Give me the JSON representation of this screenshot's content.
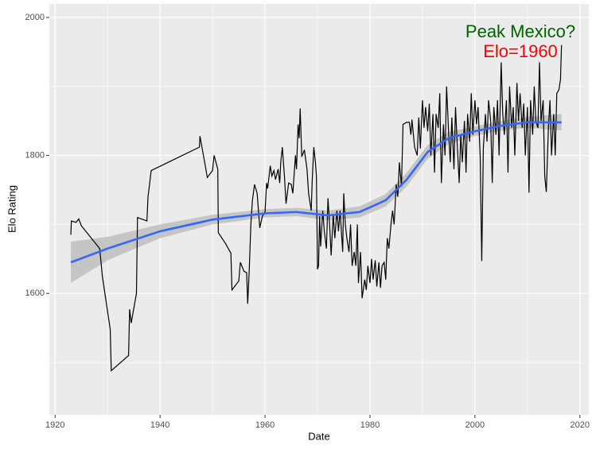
{
  "chart_data": {
    "type": "line",
    "x_label": "Date",
    "y_label": "Elo Rating",
    "annotations": [
      {
        "text": "Peak Mexico?",
        "color": "#006400"
      },
      {
        "text": "Elo=1960",
        "color": "#ff0000"
      }
    ],
    "xlim": [
      1918.9,
      2021.7
    ],
    "ylim": [
      1424,
      2019.5
    ],
    "xticks": [
      1920,
      1940,
      1960,
      1980,
      2000,
      2020
    ],
    "yticks": [
      1600,
      1800,
      2000
    ],
    "grid": true,
    "line": {
      "color": "#000000",
      "x": [
        1923,
        1923.1,
        1924,
        1924.5,
        1925,
        1928.5,
        1929,
        1930.5,
        1930.7,
        1934,
        1934.2,
        1934.5,
        1935.5,
        1935.7,
        1937.5,
        1937.7,
        1938,
        1938.3,
        1947.5,
        1947.6,
        1948.5,
        1949,
        1950,
        1950.3,
        1951,
        1951.1,
        1952.5,
        1953.5,
        1953.7,
        1955,
        1955.3,
        1956,
        1956.5,
        1956.7,
        1957,
        1957.3,
        1957.6,
        1958,
        1958.5,
        1959,
        1959.5,
        1960,
        1960.3,
        1960.5,
        1961,
        1961.3,
        1961.7,
        1962,
        1962.5,
        1962.8,
        1963,
        1963.3,
        1963.7,
        1964,
        1964.5,
        1965,
        1965.3,
        1965.8,
        1966,
        1966.3,
        1966.5,
        1966.7,
        1967,
        1967.5,
        1968,
        1968.3,
        1968.8,
        1969,
        1969.3,
        1969.6,
        1969.8,
        1970,
        1970.2,
        1970.4,
        1970.6,
        1971,
        1971.3,
        1971.7,
        1972,
        1972.3,
        1972.6,
        1973,
        1973.3,
        1973.7,
        1974,
        1974.3,
        1974.8,
        1975,
        1975.3,
        1975.6,
        1976,
        1976.3,
        1976.6,
        1977,
        1977.3,
        1977.6,
        1977.8,
        1978.2,
        1978.5,
        1979,
        1979.3,
        1979.6,
        1980,
        1980.3,
        1980.6,
        1981,
        1981.3,
        1981.7,
        1982,
        1982.3,
        1982.7,
        1983,
        1983.3,
        1983.6,
        1984,
        1984.3,
        1984.6,
        1985,
        1985.3,
        1985.6,
        1986,
        1986.3,
        1987,
        1987.5,
        1987.8,
        1988,
        1988.5,
        1989,
        1989.3,
        1989.6,
        1990,
        1990.3,
        1990.6,
        1991,
        1991.3,
        1991.6,
        1992,
        1992.3,
        1992.6,
        1993,
        1993.3,
        1993.6,
        1994,
        1994.3,
        1994.6,
        1995,
        1995.3,
        1995.6,
        1996,
        1996.3,
        1996.6,
        1997,
        1997.3,
        1997.6,
        1998,
        1998.3,
        1998.6,
        1999,
        1999.3,
        1999.6,
        2000,
        2000.3,
        2000.6,
        2001,
        2001.3,
        2001.6,
        2002,
        2002.3,
        2002.6,
        2003,
        2003.3,
        2003.6,
        2004,
        2004.3,
        2004.6,
        2005,
        2005.3,
        2005.6,
        2006,
        2006.3,
        2006.6,
        2007,
        2007.3,
        2007.6,
        2008,
        2008.3,
        2008.6,
        2009,
        2009.3,
        2009.6,
        2010,
        2010.3,
        2010.6,
        2011,
        2011.3,
        2011.6,
        2012,
        2012.3,
        2012.6,
        2013,
        2013.3,
        2013.6,
        2014,
        2014.3,
        2014.6,
        2015,
        2015.3,
        2015.6,
        2016,
        2016.3,
        2016.5
      ],
      "values": [
        1685,
        1705,
        1703,
        1708,
        1698,
        1665,
        1625,
        1548,
        1488,
        1510,
        1577,
        1557,
        1600,
        1710,
        1705,
        1740,
        1758,
        1778,
        1812,
        1828,
        1790,
        1768,
        1778,
        1800,
        1780,
        1688,
        1672,
        1658,
        1605,
        1618,
        1645,
        1632,
        1630,
        1585,
        1635,
        1700,
        1735,
        1758,
        1745,
        1695,
        1712,
        1718,
        1760,
        1752,
        1785,
        1770,
        1778,
        1765,
        1780,
        1760,
        1790,
        1812,
        1770,
        1730,
        1760,
        1758,
        1745,
        1800,
        1780,
        1845,
        1825,
        1868,
        1798,
        1808,
        1780,
        1745,
        1720,
        1765,
        1812,
        1790,
        1770,
        1635,
        1640,
        1712,
        1668,
        1720,
        1690,
        1665,
        1738,
        1700,
        1655,
        1715,
        1680,
        1720,
        1690,
        1720,
        1660,
        1745,
        1700,
        1680,
        1660,
        1700,
        1640,
        1660,
        1640,
        1700,
        1615,
        1660,
        1593,
        1620,
        1605,
        1640,
        1615,
        1650,
        1620,
        1648,
        1610,
        1645,
        1608,
        1640,
        1645,
        1620,
        1680,
        1665,
        1700,
        1720,
        1700,
        1758,
        1740,
        1790,
        1755,
        1845,
        1848,
        1848,
        1830,
        1852,
        1812,
        1800,
        1855,
        1810,
        1880,
        1840,
        1870,
        1835,
        1875,
        1800,
        1860,
        1775,
        1860,
        1840,
        1890,
        1760,
        1845,
        1800,
        1900,
        1830,
        1790,
        1855,
        1780,
        1870,
        1820,
        1760,
        1830,
        1790,
        1850,
        1775,
        1860,
        1820,
        1890,
        1830,
        1880,
        1845,
        1870,
        1800,
        1647,
        1810,
        1860,
        1820,
        1880,
        1850,
        1760,
        1870,
        1830,
        1880,
        1800,
        1935,
        1860,
        1830,
        1880,
        1775,
        1900,
        1840,
        1870,
        1800,
        1905,
        1850,
        1890,
        1840,
        1875,
        1800,
        1870,
        1746,
        1880,
        1830,
        1900,
        1850,
        1840,
        1935,
        1850,
        1880,
        1770,
        1747,
        1840,
        1880,
        1800,
        1860,
        1800,
        1890,
        1895,
        1910,
        1960
      ]
    },
    "smooth": {
      "color": "#3366FF",
      "band_color": "#BEBEBE",
      "x": [
        1923,
        1930,
        1940,
        1950,
        1960,
        1966,
        1972,
        1978,
        1983,
        1987,
        1991,
        1995,
        2000,
        2005,
        2010,
        2016.5
      ],
      "values": [
        1645,
        1665,
        1690,
        1707,
        1716,
        1718,
        1713,
        1718,
        1735,
        1765,
        1805,
        1825,
        1835,
        1843,
        1848,
        1848
      ],
      "lower": [
        1615,
        1648,
        1680,
        1700,
        1710,
        1712,
        1706,
        1710,
        1726,
        1755,
        1795,
        1816,
        1828,
        1836,
        1840,
        1836
      ],
      "upper": [
        1675,
        1682,
        1700,
        1714,
        1722,
        1724,
        1720,
        1726,
        1744,
        1775,
        1815,
        1834,
        1842,
        1850,
        1856,
        1860
      ]
    }
  }
}
